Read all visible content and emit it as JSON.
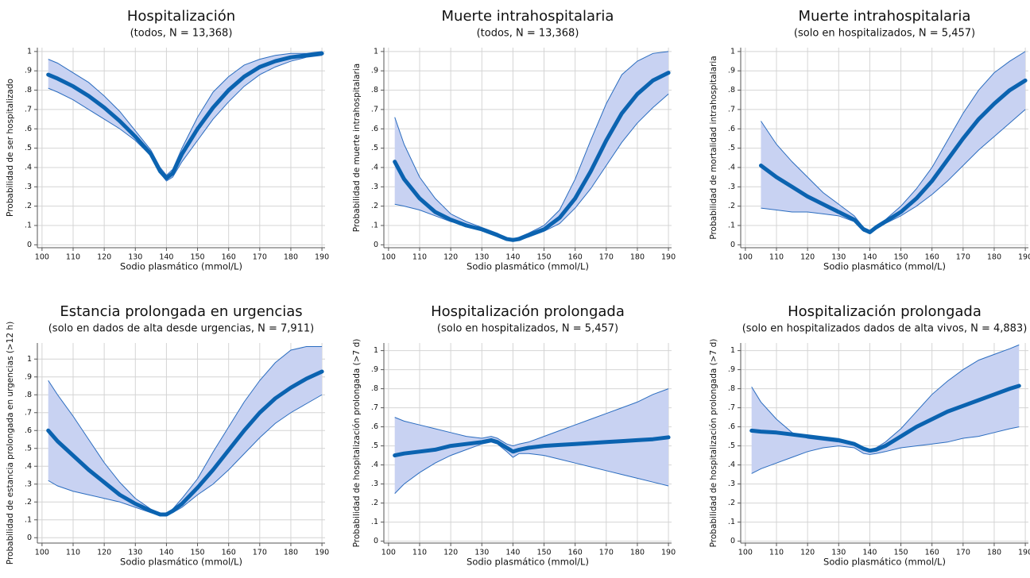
{
  "chart_data": [
    {
      "type": "band-line",
      "title": "Hospitalización",
      "subtitle": "(todos, N = 13,368)",
      "xlabel": "Sodio plasmático (mmol/L)",
      "ylabel": "Probabilidad de ser hospitalizado",
      "x": [
        102,
        105,
        110,
        115,
        120,
        125,
        130,
        135,
        138,
        140,
        142,
        145,
        150,
        155,
        160,
        165,
        170,
        175,
        180,
        185,
        190
      ],
      "values": [
        0.88,
        0.86,
        0.82,
        0.77,
        0.71,
        0.64,
        0.56,
        0.47,
        0.38,
        0.345,
        0.37,
        0.47,
        0.6,
        0.71,
        0.8,
        0.87,
        0.92,
        0.95,
        0.97,
        0.98,
        0.99
      ],
      "lower": [
        0.81,
        0.79,
        0.75,
        0.7,
        0.65,
        0.6,
        0.54,
        0.46,
        0.37,
        0.33,
        0.35,
        0.43,
        0.54,
        0.65,
        0.74,
        0.82,
        0.88,
        0.92,
        0.95,
        0.97,
        0.98
      ],
      "upper": [
        0.96,
        0.94,
        0.89,
        0.84,
        0.77,
        0.69,
        0.59,
        0.49,
        0.4,
        0.36,
        0.39,
        0.5,
        0.66,
        0.79,
        0.87,
        0.93,
        0.96,
        0.98,
        0.99,
        0.99,
        1.0
      ],
      "xlim": [
        98.5,
        191
      ],
      "xticks": [
        100,
        110,
        120,
        130,
        140,
        150,
        160,
        170,
        180,
        190
      ],
      "ylim": [
        -0.015,
        1.02
      ],
      "yticks": [
        0,
        {
          "value": 0.1,
          "label": ".1"
        },
        {
          "value": 0.2,
          "label": ".2"
        },
        {
          "value": 0.3,
          "label": ".3"
        },
        {
          "value": 0.4,
          "label": ".4"
        },
        {
          "value": 0.5,
          "label": ".5"
        },
        {
          "value": 0.6,
          "label": ".6"
        },
        {
          "value": 0.7,
          "label": ".7"
        },
        {
          "value": 0.8,
          "label": ".8"
        },
        {
          "value": 0.9,
          "label": ".9"
        },
        1
      ],
      "grid": true,
      "line_color": "#0b63b0",
      "band_color": "#c8d2f2",
      "band_edge_color": "#2a6cbf"
    },
    {
      "type": "band-line",
      "title": "Muerte intrahospitalaria",
      "subtitle": "(todos, N = 13,368)",
      "xlabel": "Sodio plasmático (mmol/L)",
      "ylabel": "Probabilidad de muerte intrahospitalaria",
      "x": [
        102,
        105,
        110,
        115,
        120,
        125,
        130,
        135,
        138,
        140,
        142,
        145,
        150,
        155,
        160,
        165,
        170,
        175,
        180,
        185,
        190
      ],
      "values": [
        0.43,
        0.34,
        0.24,
        0.17,
        0.13,
        0.1,
        0.08,
        0.05,
        0.03,
        0.025,
        0.03,
        0.05,
        0.08,
        0.14,
        0.24,
        0.38,
        0.54,
        0.68,
        0.78,
        0.85,
        0.89
      ],
      "lower": [
        0.21,
        0.2,
        0.18,
        0.15,
        0.12,
        0.1,
        0.08,
        0.05,
        0.025,
        0.02,
        0.025,
        0.04,
        0.07,
        0.11,
        0.19,
        0.29,
        0.41,
        0.53,
        0.63,
        0.71,
        0.78
      ],
      "upper": [
        0.66,
        0.52,
        0.35,
        0.24,
        0.16,
        0.12,
        0.09,
        0.06,
        0.035,
        0.03,
        0.04,
        0.06,
        0.1,
        0.18,
        0.34,
        0.54,
        0.73,
        0.88,
        0.95,
        0.99,
        1.0
      ],
      "xlim": [
        98.5,
        191
      ],
      "xticks": [
        100,
        110,
        120,
        130,
        140,
        150,
        160,
        170,
        180,
        190
      ],
      "ylim": [
        -0.015,
        1.02
      ],
      "yticks": [
        0,
        {
          "value": 0.1,
          "label": ".1"
        },
        {
          "value": 0.2,
          "label": ".2"
        },
        {
          "value": 0.3,
          "label": ".3"
        },
        {
          "value": 0.4,
          "label": ".4"
        },
        {
          "value": 0.5,
          "label": ".5"
        },
        {
          "value": 0.6,
          "label": ".6"
        },
        {
          "value": 0.7,
          "label": ".7"
        },
        {
          "value": 0.8,
          "label": ".8"
        },
        {
          "value": 0.9,
          "label": ".9"
        },
        1
      ],
      "grid": true,
      "line_color": "#0b63b0",
      "band_color": "#c8d2f2",
      "band_edge_color": "#2a6cbf"
    },
    {
      "type": "band-line",
      "title": "Muerte intrahospitalaria",
      "subtitle": "(solo en hospitalizados, N = 5,457)",
      "xlabel": "Sodio plasmático (mmol/L)",
      "ylabel": "Probabilidad de mortalidad intrahospitalaria",
      "x": [
        105,
        110,
        115,
        120,
        125,
        130,
        135,
        138,
        140,
        142,
        145,
        150,
        155,
        160,
        165,
        170,
        175,
        180,
        185,
        190
      ],
      "values": [
        0.41,
        0.35,
        0.3,
        0.25,
        0.21,
        0.17,
        0.13,
        0.08,
        0.065,
        0.09,
        0.12,
        0.17,
        0.24,
        0.33,
        0.44,
        0.55,
        0.65,
        0.73,
        0.8,
        0.85
      ],
      "lower": [
        0.19,
        0.18,
        0.17,
        0.17,
        0.16,
        0.15,
        0.12,
        0.07,
        0.06,
        0.08,
        0.11,
        0.15,
        0.2,
        0.26,
        0.33,
        0.41,
        0.49,
        0.56,
        0.63,
        0.7
      ],
      "upper": [
        0.64,
        0.52,
        0.43,
        0.35,
        0.27,
        0.21,
        0.15,
        0.09,
        0.075,
        0.1,
        0.13,
        0.2,
        0.29,
        0.4,
        0.54,
        0.68,
        0.8,
        0.89,
        0.95,
        1.0
      ],
      "xlim": [
        98.5,
        191
      ],
      "xticks": [
        100,
        110,
        120,
        130,
        140,
        150,
        160,
        170,
        180,
        190
      ],
      "ylim": [
        -0.015,
        1.02
      ],
      "yticks": [
        0,
        {
          "value": 0.1,
          "label": ".1"
        },
        {
          "value": 0.2,
          "label": ".2"
        },
        {
          "value": 0.3,
          "label": ".3"
        },
        {
          "value": 0.4,
          "label": ".4"
        },
        {
          "value": 0.5,
          "label": ".5"
        },
        {
          "value": 0.6,
          "label": ".6"
        },
        {
          "value": 0.7,
          "label": ".7"
        },
        {
          "value": 0.8,
          "label": ".8"
        },
        {
          "value": 0.9,
          "label": ".9"
        },
        1
      ],
      "grid": true,
      "line_color": "#0b63b0",
      "band_color": "#c8d2f2",
      "band_edge_color": "#2a6cbf"
    },
    {
      "type": "band-line",
      "title": "Estancia prolongada en urgencias",
      "subtitle": "(solo en dados de alta desde urgencias, N = 7,911)",
      "xlabel": "Sodio plasmático (mmol/L)",
      "ylabel": "Probabilidad de estancia prolongada en urgencias (>12 h)",
      "x": [
        102,
        105,
        110,
        115,
        120,
        125,
        130,
        135,
        138,
        140,
        142,
        145,
        150,
        155,
        160,
        165,
        170,
        175,
        180,
        185,
        190
      ],
      "values": [
        0.6,
        0.54,
        0.46,
        0.38,
        0.31,
        0.24,
        0.19,
        0.15,
        0.13,
        0.13,
        0.15,
        0.19,
        0.28,
        0.38,
        0.49,
        0.6,
        0.7,
        0.78,
        0.84,
        0.89,
        0.93
      ],
      "lower": [
        0.32,
        0.29,
        0.26,
        0.24,
        0.22,
        0.2,
        0.17,
        0.14,
        0.125,
        0.125,
        0.14,
        0.17,
        0.24,
        0.3,
        0.38,
        0.47,
        0.56,
        0.64,
        0.7,
        0.75,
        0.8
      ],
      "upper": [
        0.88,
        0.8,
        0.68,
        0.55,
        0.42,
        0.31,
        0.22,
        0.16,
        0.135,
        0.14,
        0.16,
        0.22,
        0.33,
        0.48,
        0.62,
        0.76,
        0.88,
        0.98,
        1.05,
        1.07,
        1.07
      ],
      "xlim": [
        98.5,
        191
      ],
      "xticks": [
        100,
        110,
        120,
        130,
        140,
        150,
        160,
        170,
        180,
        190
      ],
      "ylim": [
        -0.03,
        1.09
      ],
      "yticks": [
        0,
        {
          "value": 0.1,
          "label": ".1"
        },
        {
          "value": 0.2,
          "label": ".2"
        },
        {
          "value": 0.3,
          "label": ".3"
        },
        {
          "value": 0.4,
          "label": ".4"
        },
        {
          "value": 0.5,
          "label": ".5"
        },
        {
          "value": 0.6,
          "label": ".6"
        },
        {
          "value": 0.7,
          "label": ".7"
        },
        {
          "value": 0.8,
          "label": ".8"
        },
        {
          "value": 0.9,
          "label": ".9"
        },
        1
      ],
      "grid": true,
      "line_color": "#0b63b0",
      "band_color": "#c8d2f2",
      "band_edge_color": "#2a6cbf"
    },
    {
      "type": "band-line",
      "title": "Hospitalización prolongada",
      "subtitle": "(solo en hospitalizados, N = 5,457)",
      "xlabel": "Sodio plasmático (mmol/L)",
      "ylabel": "Probabilidad de hospitalización prolongada (>7 d)",
      "x": [
        102,
        105,
        110,
        115,
        120,
        125,
        130,
        133,
        135,
        138,
        140,
        142,
        145,
        150,
        155,
        160,
        165,
        170,
        175,
        180,
        185,
        190
      ],
      "values": [
        0.45,
        0.46,
        0.47,
        0.48,
        0.5,
        0.51,
        0.52,
        0.53,
        0.52,
        0.49,
        0.47,
        0.48,
        0.49,
        0.5,
        0.505,
        0.51,
        0.515,
        0.52,
        0.525,
        0.53,
        0.535,
        0.545
      ],
      "lower": [
        0.25,
        0.3,
        0.36,
        0.41,
        0.45,
        0.48,
        0.51,
        0.52,
        0.51,
        0.47,
        0.44,
        0.46,
        0.46,
        0.45,
        0.43,
        0.41,
        0.39,
        0.37,
        0.35,
        0.33,
        0.31,
        0.29
      ],
      "upper": [
        0.65,
        0.63,
        0.61,
        0.59,
        0.57,
        0.55,
        0.54,
        0.55,
        0.54,
        0.51,
        0.5,
        0.51,
        0.52,
        0.55,
        0.58,
        0.61,
        0.64,
        0.67,
        0.7,
        0.73,
        0.77,
        0.8
      ],
      "xlim": [
        98.5,
        191
      ],
      "xticks": [
        100,
        110,
        120,
        130,
        140,
        150,
        160,
        170,
        180,
        190
      ],
      "ylim": [
        -0.01,
        1.04
      ],
      "yticks": [
        0,
        {
          "value": 0.1,
          "label": ".1"
        },
        {
          "value": 0.2,
          "label": ".2"
        },
        {
          "value": 0.3,
          "label": ".3"
        },
        {
          "value": 0.4,
          "label": ".4"
        },
        {
          "value": 0.5,
          "label": ".5"
        },
        {
          "value": 0.6,
          "label": ".6"
        },
        {
          "value": 0.7,
          "label": ".7"
        },
        {
          "value": 0.8,
          "label": ".8"
        },
        {
          "value": 0.9,
          "label": ".9"
        },
        1
      ],
      "grid": true,
      "line_color": "#0b63b0",
      "band_color": "#c8d2f2",
      "band_edge_color": "#2a6cbf"
    },
    {
      "type": "band-line",
      "title": "Hospitalización prolongada",
      "subtitle": "(solo en hospitalizados dados de alta vivos, N = 4,883)",
      "xlabel": "Sodio plasmático (mmol/L)",
      "ylabel": "Probabilidad de hospitalización prolongada (>7 d)",
      "x": [
        102,
        105,
        110,
        115,
        120,
        125,
        130,
        135,
        138,
        140,
        142,
        145,
        150,
        155,
        160,
        165,
        170,
        175,
        180,
        185,
        188
      ],
      "values": [
        0.58,
        0.575,
        0.57,
        0.56,
        0.55,
        0.54,
        0.53,
        0.51,
        0.485,
        0.475,
        0.48,
        0.5,
        0.55,
        0.6,
        0.64,
        0.68,
        0.71,
        0.74,
        0.77,
        0.8,
        0.815
      ],
      "lower": [
        0.355,
        0.38,
        0.41,
        0.44,
        0.47,
        0.49,
        0.5,
        0.49,
        0.46,
        0.455,
        0.46,
        0.47,
        0.49,
        0.5,
        0.51,
        0.52,
        0.54,
        0.55,
        0.57,
        0.59,
        0.6
      ],
      "upper": [
        0.81,
        0.73,
        0.64,
        0.57,
        0.54,
        0.53,
        0.52,
        0.51,
        0.49,
        0.48,
        0.49,
        0.52,
        0.59,
        0.68,
        0.77,
        0.84,
        0.9,
        0.95,
        0.98,
        1.01,
        1.03
      ],
      "xlim": [
        98.5,
        191
      ],
      "xticks": [
        100,
        110,
        120,
        130,
        140,
        150,
        160,
        170,
        180,
        190
      ],
      "ylim": [
        -0.01,
        1.04
      ],
      "yticks": [
        0,
        {
          "value": 0.1,
          "label": ".1"
        },
        {
          "value": 0.2,
          "label": ".2"
        },
        {
          "value": 0.3,
          "label": ".3"
        },
        {
          "value": 0.4,
          "label": ".4"
        },
        {
          "value": 0.5,
          "label": ".5"
        },
        {
          "value": 0.6,
          "label": ".6"
        },
        {
          "value": 0.7,
          "label": ".7"
        },
        {
          "value": 0.8,
          "label": ".8"
        },
        {
          "value": 0.9,
          "label": ".9"
        },
        1
      ],
      "grid": true,
      "line_color": "#0b63b0",
      "band_color": "#c8d2f2",
      "band_edge_color": "#2a6cbf"
    }
  ]
}
